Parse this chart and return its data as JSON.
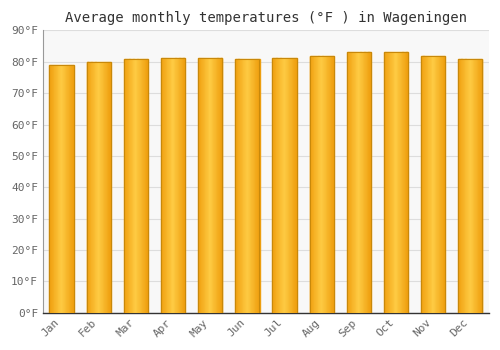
{
  "months": [
    "Jan",
    "Feb",
    "Mar",
    "Apr",
    "May",
    "Jun",
    "Jul",
    "Aug",
    "Sep",
    "Oct",
    "Nov",
    "Dec"
  ],
  "values": [
    79.0,
    80.0,
    81.0,
    81.2,
    81.1,
    81.0,
    81.1,
    82.0,
    83.0,
    83.0,
    82.0,
    80.8
  ],
  "title": "Average monthly temperatures (°F ) in Wageningen",
  "ylim": [
    0,
    90
  ],
  "yticks": [
    0,
    10,
    20,
    30,
    40,
    50,
    60,
    70,
    80,
    90
  ],
  "ytick_labels": [
    "0°F",
    "10°F",
    "20°F",
    "30°F",
    "40°F",
    "50°F",
    "60°F",
    "70°F",
    "80°F",
    "90°F"
  ],
  "bar_color_center": "#FFCC44",
  "bar_color_edge": "#F0A010",
  "bar_border_color": "#C8880A",
  "background_color": "#FFFFFF",
  "plot_bg_color": "#F8F8F8",
  "grid_color": "#DDDDDD",
  "title_color": "#333333",
  "tick_color": "#666666",
  "title_fontsize": 10,
  "tick_fontsize": 8,
  "bar_width": 0.65
}
